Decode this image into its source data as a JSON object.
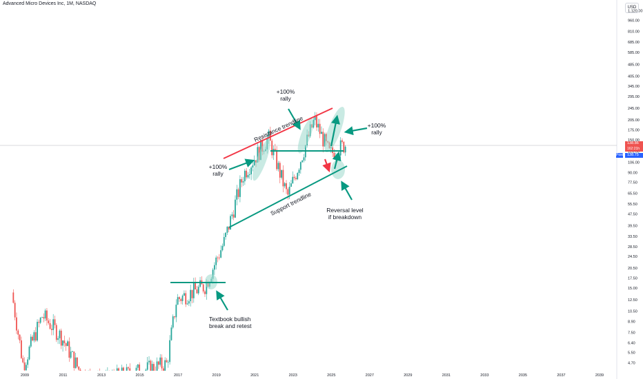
{
  "header": {
    "symbol_line": "Advanced Micro Devices Inc, 1M, NASDAQ",
    "currency": "USD"
  },
  "price_tags": {
    "last": "138.86",
    "change": "162:21h",
    "post_label": "Post",
    "post_price": "138.75"
  },
  "colors": {
    "up": "#26a69a",
    "down": "#ef5350",
    "annotation": "#089981",
    "resistance": "#f23645",
    "highlight": "#9dd9cc",
    "price_line": "#b2b5be"
  },
  "chart_data": {
    "type": "candlestick",
    "title": "Advanced Micro Devices Inc, 1M, NASDAQ",
    "y_scale": "log",
    "y_ticks": [
      "1,120.00",
      "960.00",
      "810.00",
      "685.00",
      "585.00",
      "485.00",
      "405.00",
      "345.00",
      "295.00",
      "245.00",
      "205.00",
      "175.00",
      "150.00",
      "126.00",
      "106.00",
      "90.00",
      "77.50",
      "65.50",
      "55.50",
      "47.50",
      "39.50",
      "33.50",
      "28.50",
      "24.50",
      "20.50",
      "17.50",
      "15.00",
      "12.50",
      "10.50",
      "8.90",
      "7.50",
      "6.40",
      "5.50",
      "4.70"
    ],
    "x_ticks": [
      "2009",
      "2011",
      "2013",
      "2015",
      "2017",
      "2019",
      "2021",
      "2023",
      "2025",
      "2027",
      "2029",
      "2031",
      "2033",
      "2035",
      "2037",
      "2039"
    ],
    "last_price": 138.86,
    "approx_yearly_path": [
      {
        "year": 2008.4,
        "price": 14.0
      },
      {
        "year": 2009.0,
        "price": 4.5
      },
      {
        "year": 2010.0,
        "price": 9.8
      },
      {
        "year": 2011.0,
        "price": 7.0
      },
      {
        "year": 2012.0,
        "price": 4.0
      },
      {
        "year": 2013.0,
        "price": 3.5
      },
      {
        "year": 2016.5,
        "price": 4.6
      },
      {
        "year": 2017.0,
        "price": 12.5
      },
      {
        "year": 2018.5,
        "price": 15.5
      },
      {
        "year": 2019.5,
        "price": 31.0
      },
      {
        "year": 2020.5,
        "price": 88.0
      },
      {
        "year": 2021.8,
        "price": 155.0
      },
      {
        "year": 2022.8,
        "price": 62.0
      },
      {
        "year": 2024.2,
        "price": 205.0
      },
      {
        "year": 2025.0,
        "price": 120.0
      },
      {
        "year": 2025.8,
        "price": 138.86
      }
    ],
    "annotations": [
      {
        "label": "Resistance trendline"
      },
      {
        "label": "Support trendline"
      },
      {
        "label": "+100%\nrally"
      },
      {
        "label": "+100%\nrally"
      },
      {
        "label": "+100%\nrally"
      },
      {
        "label": "Textbook bullish\nbreak and retest"
      },
      {
        "label": "Reversal level\nif breakdown"
      }
    ]
  }
}
